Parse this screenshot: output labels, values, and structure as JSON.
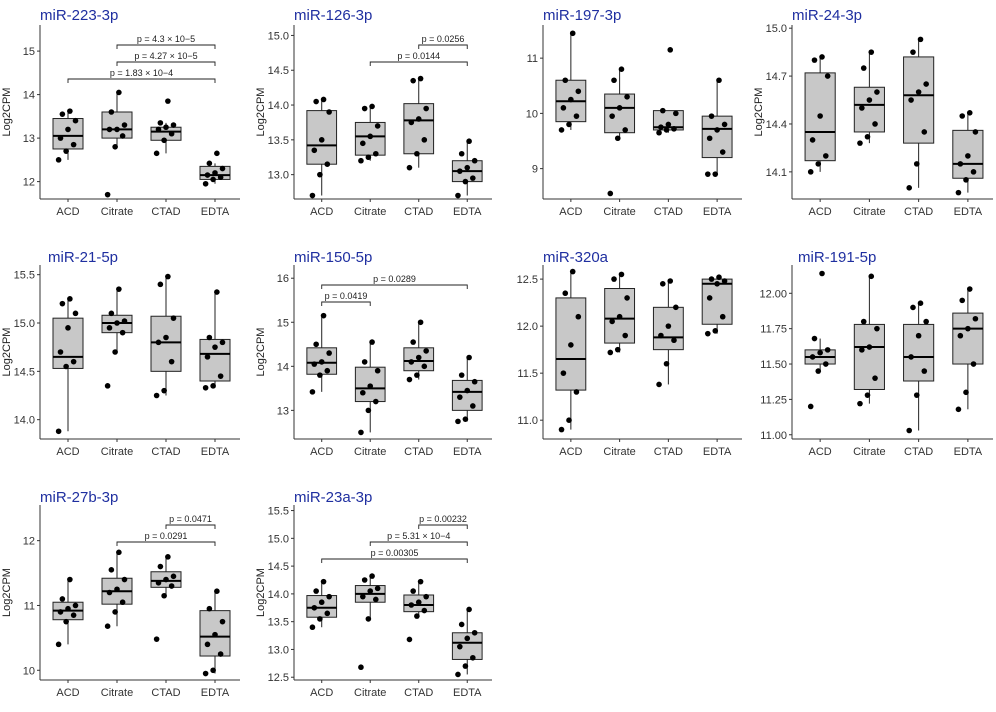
{
  "figure": {
    "accent_color": "#1f2fa0",
    "box_fill": "#c8c8c8",
    "point_color": "#000000"
  },
  "chart_data": [
    {
      "type": "box",
      "title": "miR-223-3p",
      "ylabel": "Log2CPM",
      "categories": [
        "ACD",
        "Citrate",
        "CTAD",
        "EDTA"
      ],
      "yticks": [
        "12",
        "13",
        "14",
        "15"
      ],
      "ylim": [
        11.6,
        15.6
      ],
      "boxes": [
        {
          "min": 12.5,
          "q1": 12.75,
          "median": 13.05,
          "q3": 13.45,
          "max": 13.62
        },
        {
          "min": 12.8,
          "q1": 13.0,
          "median": 13.2,
          "q3": 13.6,
          "max": 14.05
        },
        {
          "min": 12.65,
          "q1": 12.95,
          "median": 13.15,
          "q3": 13.25,
          "max": 13.35
        },
        {
          "min": 11.95,
          "q1": 12.05,
          "median": 12.15,
          "q3": 12.35,
          "max": 12.42
        }
      ],
      "points": [
        [
          12.5,
          12.7,
          12.85,
          13.0,
          13.2,
          13.4,
          13.55,
          13.62
        ],
        [
          11.7,
          12.8,
          13.05,
          13.2,
          13.2,
          13.3,
          13.6,
          14.05
        ],
        [
          12.65,
          12.95,
          13.1,
          13.2,
          13.25,
          13.3,
          13.35,
          13.85
        ],
        [
          11.95,
          12.05,
          12.1,
          12.15,
          12.2,
          12.3,
          12.42,
          12.65
        ]
      ],
      "comparisons": [
        {
          "from": 1,
          "to": 3,
          "label": "p = 4.3 × 10−5"
        },
        {
          "from": 1,
          "to": 3,
          "label": "p = 4.27 × 10−5"
        },
        {
          "from": 0,
          "to": 3,
          "label": "p = 1.83 × 10−4"
        }
      ]
    },
    {
      "type": "box",
      "title": "miR-126-3p",
      "ylabel": "Log2CPM",
      "categories": [
        "ACD",
        "Citrate",
        "CTAD",
        "EDTA"
      ],
      "yticks": [
        "13.0",
        "13.5",
        "14.0",
        "14.5",
        "15.0"
      ],
      "ylim": [
        12.65,
        15.15
      ],
      "boxes": [
        {
          "min": 12.7,
          "q1": 13.15,
          "median": 13.42,
          "q3": 13.92,
          "max": 14.08
        },
        {
          "min": 13.2,
          "q1": 13.28,
          "median": 13.55,
          "q3": 13.75,
          "max": 13.98
        },
        {
          "min": 13.1,
          "q1": 13.3,
          "median": 13.78,
          "q3": 14.02,
          "max": 14.38
        },
        {
          "min": 12.7,
          "q1": 12.9,
          "median": 13.05,
          "q3": 13.2,
          "max": 13.48
        }
      ],
      "points": [
        [
          12.7,
          13.0,
          13.15,
          13.35,
          13.5,
          13.9,
          14.05,
          14.08
        ],
        [
          13.2,
          13.25,
          13.3,
          13.45,
          13.55,
          13.7,
          13.95,
          13.98
        ],
        [
          13.1,
          13.3,
          13.5,
          13.75,
          13.8,
          13.95,
          14.35,
          14.38
        ],
        [
          12.7,
          12.9,
          12.95,
          13.05,
          13.1,
          13.2,
          13.3,
          13.48
        ]
      ],
      "comparisons": [
        {
          "from": 2,
          "to": 3,
          "label": "p = 0.0256"
        },
        {
          "from": 1,
          "to": 3,
          "label": "p = 0.0144"
        }
      ]
    },
    {
      "type": "box",
      "title": "miR-197-3p",
      "ylabel": "",
      "categories": [
        "ACD",
        "Citrate",
        "CTAD",
        "EDTA"
      ],
      "yticks": [
        "9",
        "10",
        "11"
      ],
      "ylim": [
        8.45,
        11.6
      ],
      "boxes": [
        {
          "min": 9.7,
          "q1": 9.85,
          "median": 10.22,
          "q3": 10.6,
          "max": 11.45
        },
        {
          "min": 9.55,
          "q1": 9.65,
          "median": 10.1,
          "q3": 10.35,
          "max": 10.8
        },
        {
          "min": 9.65,
          "q1": 9.7,
          "median": 9.75,
          "q3": 10.05,
          "max": 10.05
        },
        {
          "min": 8.9,
          "q1": 9.2,
          "median": 9.72,
          "q3": 9.95,
          "max": 10.6
        }
      ],
      "points": [
        [
          9.7,
          9.8,
          9.95,
          10.1,
          10.25,
          10.4,
          10.6,
          11.45
        ],
        [
          8.55,
          9.55,
          9.7,
          9.95,
          10.1,
          10.3,
          10.6,
          10.8
        ],
        [
          9.65,
          9.7,
          9.72,
          9.75,
          9.8,
          10.0,
          10.05,
          11.15
        ],
        [
          8.9,
          8.9,
          9.3,
          9.55,
          9.7,
          9.8,
          9.95,
          10.6
        ]
      ],
      "comparisons": []
    },
    {
      "type": "box",
      "title": "miR-24-3p",
      "ylabel": "Log2CPM",
      "categories": [
        "ACD",
        "Citrate",
        "CTAD",
        "EDTA"
      ],
      "yticks": [
        "14.1",
        "14.4",
        "14.7",
        "15.0"
      ],
      "ylim": [
        13.93,
        15.02
      ],
      "boxes": [
        {
          "min": 14.1,
          "q1": 14.17,
          "median": 14.35,
          "q3": 14.72,
          "max": 14.82
        },
        {
          "min": 14.28,
          "q1": 14.35,
          "median": 14.52,
          "q3": 14.63,
          "max": 14.85
        },
        {
          "min": 14.0,
          "q1": 14.28,
          "median": 14.58,
          "q3": 14.82,
          "max": 14.93
        },
        {
          "min": 13.97,
          "q1": 14.06,
          "median": 14.15,
          "q3": 14.36,
          "max": 14.47
        }
      ],
      "points": [
        [
          14.1,
          14.15,
          14.2,
          14.3,
          14.45,
          14.7,
          14.8,
          14.82
        ],
        [
          14.28,
          14.32,
          14.4,
          14.5,
          14.55,
          14.6,
          14.75,
          14.85
        ],
        [
          14.0,
          14.15,
          14.35,
          14.55,
          14.6,
          14.65,
          14.85,
          14.93
        ],
        [
          13.97,
          14.05,
          14.1,
          14.15,
          14.2,
          14.35,
          14.45,
          14.47
        ]
      ],
      "comparisons": []
    },
    {
      "type": "box",
      "title": "miR-21-5p",
      "ylabel": "Log2CPM",
      "categories": [
        "ACD",
        "Citrate",
        "CTAD",
        "EDTA"
      ],
      "yticks": [
        "14.0",
        "14.5",
        "15.0",
        "15.5"
      ],
      "ylim": [
        13.8,
        15.6
      ],
      "boxes": [
        {
          "min": 13.88,
          "q1": 14.53,
          "median": 14.65,
          "q3": 15.05,
          "max": 15.25
        },
        {
          "min": 14.7,
          "q1": 14.9,
          "median": 15.0,
          "q3": 15.08,
          "max": 15.35
        },
        {
          "min": 14.25,
          "q1": 14.5,
          "median": 14.8,
          "q3": 15.07,
          "max": 15.48
        },
        {
          "min": 14.33,
          "q1": 14.4,
          "median": 14.68,
          "q3": 14.83,
          "max": 15.32
        }
      ],
      "points": [
        [
          13.88,
          14.55,
          14.6,
          14.7,
          14.95,
          15.1,
          15.2,
          15.25
        ],
        [
          14.35,
          14.7,
          14.9,
          14.95,
          15.0,
          15.02,
          15.1,
          15.35
        ],
        [
          14.25,
          14.3,
          14.6,
          14.8,
          14.85,
          15.05,
          15.4,
          15.48
        ],
        [
          14.33,
          14.35,
          14.45,
          14.65,
          14.75,
          14.8,
          14.85,
          15.32
        ]
      ],
      "comparisons": []
    },
    {
      "type": "box",
      "title": "miR-150-5p",
      "ylabel": "Log2CPM",
      "categories": [
        "ACD",
        "Citrate",
        "CTAD",
        "EDTA"
      ],
      "yticks": [
        "13",
        "14",
        "15",
        "16"
      ],
      "ylim": [
        12.35,
        16.3
      ],
      "boxes": [
        {
          "min": 13.42,
          "q1": 13.82,
          "median": 14.08,
          "q3": 14.42,
          "max": 15.15
        },
        {
          "min": 12.5,
          "q1": 13.2,
          "median": 13.5,
          "q3": 13.98,
          "max": 14.55
        },
        {
          "min": 13.7,
          "q1": 13.9,
          "median": 14.12,
          "q3": 14.42,
          "max": 15.0
        },
        {
          "min": 12.75,
          "q1": 13.0,
          "median": 13.42,
          "q3": 13.68,
          "max": 14.2
        }
      ],
      "points": [
        [
          13.42,
          13.8,
          13.9,
          14.05,
          14.1,
          14.3,
          14.5,
          15.15
        ],
        [
          12.5,
          13.0,
          13.2,
          13.4,
          13.55,
          13.9,
          14.1,
          14.55
        ],
        [
          13.7,
          13.8,
          14.0,
          14.1,
          14.2,
          14.35,
          14.55,
          15.0
        ],
        [
          12.75,
          12.8,
          13.1,
          13.3,
          13.45,
          13.65,
          13.8,
          14.2
        ]
      ],
      "comparisons": [
        {
          "from": 0,
          "to": 3,
          "label": "p = 0.0289"
        },
        {
          "from": 0,
          "to": 1,
          "label": "p = 0.0419"
        }
      ]
    },
    {
      "type": "box",
      "title": "miR-320a",
      "ylabel": "",
      "categories": [
        "ACD",
        "Citrate",
        "CTAD",
        "EDTA"
      ],
      "yticks": [
        "11.0",
        "11.5",
        "12.0",
        "12.5"
      ],
      "ylim": [
        10.8,
        12.65
      ],
      "boxes": [
        {
          "min": 10.9,
          "q1": 11.32,
          "median": 11.65,
          "q3": 12.3,
          "max": 12.58
        },
        {
          "min": 11.72,
          "q1": 11.82,
          "median": 12.08,
          "q3": 12.4,
          "max": 12.55
        },
        {
          "min": 11.38,
          "q1": 11.75,
          "median": 11.88,
          "q3": 12.2,
          "max": 12.48
        },
        {
          "min": 11.92,
          "q1": 12.02,
          "median": 12.45,
          "q3": 12.5,
          "max": 12.52
        }
      ],
      "points": [
        [
          10.9,
          11.0,
          11.3,
          11.5,
          11.8,
          12.1,
          12.35,
          12.58
        ],
        [
          11.72,
          11.75,
          11.9,
          12.05,
          12.1,
          12.3,
          12.5,
          12.55
        ],
        [
          11.38,
          11.6,
          11.85,
          11.9,
          12.0,
          12.2,
          12.45,
          12.48
        ],
        [
          11.92,
          11.95,
          12.1,
          12.3,
          12.45,
          12.48,
          12.5,
          12.52
        ]
      ],
      "comparisons": []
    },
    {
      "type": "box",
      "title": "miR-191-5p",
      "ylabel": "",
      "categories": [
        "ACD",
        "Citrate",
        "CTAD",
        "EDTA"
      ],
      "yticks": [
        "11.00",
        "11.25",
        "11.50",
        "11.75",
        "12.00"
      ],
      "ylim": [
        10.97,
        12.2
      ],
      "boxes": [
        {
          "min": 11.45,
          "q1": 11.5,
          "median": 11.55,
          "q3": 11.6,
          "max": 11.68
        },
        {
          "min": 11.22,
          "q1": 11.32,
          "median": 11.62,
          "q3": 11.78,
          "max": 12.12
        },
        {
          "min": 11.03,
          "q1": 11.38,
          "median": 11.55,
          "q3": 11.78,
          "max": 11.93
        },
        {
          "min": 11.18,
          "q1": 11.5,
          "median": 11.75,
          "q3": 11.86,
          "max": 12.03
        }
      ],
      "points": [
        [
          11.2,
          11.45,
          11.5,
          11.55,
          11.58,
          11.6,
          11.68,
          12.14
        ],
        [
          11.22,
          11.28,
          11.4,
          11.6,
          11.62,
          11.75,
          11.8,
          12.12
        ],
        [
          11.03,
          11.28,
          11.45,
          11.55,
          11.7,
          11.8,
          11.9,
          11.93
        ],
        [
          11.18,
          11.3,
          11.5,
          11.7,
          11.75,
          11.82,
          11.95,
          12.03
        ]
      ],
      "comparisons": []
    },
    {
      "type": "box",
      "title": "miR-27b-3p",
      "ylabel": "Log2CPM",
      "categories": [
        "ACD",
        "Citrate",
        "CTAD",
        "EDTA"
      ],
      "yticks": [
        "10",
        "11",
        "12"
      ],
      "ylim": [
        9.85,
        12.55
      ],
      "boxes": [
        {
          "min": 10.4,
          "q1": 10.78,
          "median": 10.92,
          "q3": 11.05,
          "max": 11.4
        },
        {
          "min": 10.68,
          "q1": 11.02,
          "median": 11.22,
          "q3": 11.42,
          "max": 11.82
        },
        {
          "min": 11.15,
          "q1": 11.28,
          "median": 11.38,
          "q3": 11.52,
          "max": 11.75
        },
        {
          "min": 9.95,
          "q1": 10.22,
          "median": 10.52,
          "q3": 10.92,
          "max": 11.22
        }
      ],
      "points": [
        [
          10.4,
          10.75,
          10.85,
          10.9,
          10.95,
          11.0,
          11.1,
          11.4
        ],
        [
          10.68,
          10.9,
          11.05,
          11.2,
          11.25,
          11.4,
          11.55,
          11.82
        ],
        [
          10.48,
          11.15,
          11.3,
          11.35,
          11.4,
          11.45,
          11.6,
          11.75
        ],
        [
          9.95,
          10.0,
          10.25,
          10.4,
          10.55,
          10.75,
          10.95,
          11.22
        ]
      ],
      "comparisons": [
        {
          "from": 2,
          "to": 3,
          "label": "p = 0.0471"
        },
        {
          "from": 1,
          "to": 3,
          "label": "p = 0.0291"
        }
      ]
    },
    {
      "type": "box",
      "title": "miR-23a-3p",
      "ylabel": "Log2CPM",
      "categories": [
        "ACD",
        "Citrate",
        "CTAD",
        "EDTA"
      ],
      "yticks": [
        "12.5",
        "13.0",
        "13.5",
        "14.0",
        "14.5",
        "15.0",
        "15.5"
      ],
      "ylim": [
        12.45,
        15.6
      ],
      "boxes": [
        {
          "min": 13.4,
          "q1": 13.58,
          "median": 13.75,
          "q3": 13.97,
          "max": 14.22
        },
        {
          "min": 13.55,
          "q1": 13.85,
          "median": 14.0,
          "q3": 14.15,
          "max": 14.32
        },
        {
          "min": 13.6,
          "q1": 13.68,
          "median": 13.8,
          "q3": 13.98,
          "max": 14.22
        },
        {
          "min": 12.55,
          "q1": 12.82,
          "median": 13.12,
          "q3": 13.3,
          "max": 13.72
        }
      ],
      "points": [
        [
          13.4,
          13.55,
          13.65,
          13.75,
          13.85,
          13.95,
          14.05,
          14.22
        ],
        [
          12.68,
          13.55,
          13.9,
          13.95,
          14.05,
          14.1,
          14.25,
          14.32
        ],
        [
          13.18,
          13.6,
          13.7,
          13.8,
          13.85,
          13.95,
          14.05,
          14.22
        ],
        [
          12.55,
          12.7,
          12.85,
          13.05,
          13.2,
          13.3,
          13.45,
          13.72
        ]
      ],
      "comparisons": [
        {
          "from": 2,
          "to": 3,
          "label": "p = 0.00232"
        },
        {
          "from": 1,
          "to": 3,
          "label": "p = 5.31 × 10−4"
        },
        {
          "from": 0,
          "to": 3,
          "label": "p = 0.00305"
        }
      ]
    }
  ]
}
